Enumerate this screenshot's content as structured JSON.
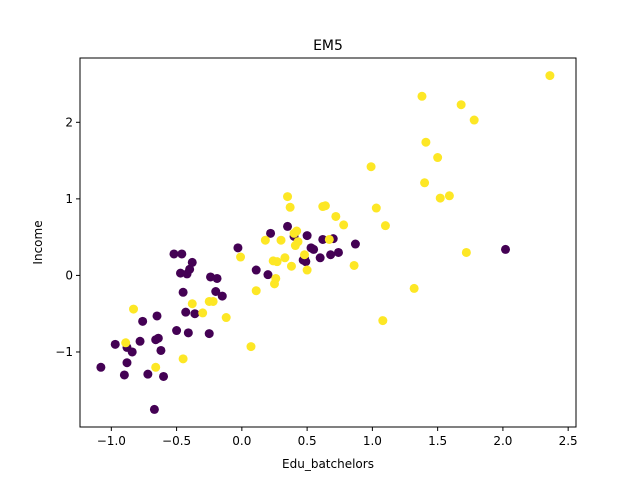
{
  "chart_data": {
    "type": "scatter",
    "title": "EM5",
    "xlabel": "Edu_batchelors",
    "ylabel": "Income",
    "xlim": [
      -1.24,
      2.56
    ],
    "ylim": [
      -1.98,
      2.84
    ],
    "xticks": [
      -1.0,
      -0.5,
      0.0,
      0.5,
      1.0,
      1.5,
      2.0,
      2.5
    ],
    "xtick_labels": [
      "−1.0",
      "−0.5",
      "0.0",
      "0.5",
      "1.0",
      "1.5",
      "2.0",
      "2.5"
    ],
    "yticks": [
      -1,
      0,
      1,
      2
    ],
    "ytick_labels": [
      "−1",
      "0",
      "1",
      "2"
    ],
    "grid": false,
    "legend": "none",
    "colors": {
      "cluster_0": "#440154",
      "cluster_1": "#fde725"
    },
    "series": [
      {
        "color_key": "cluster_0",
        "x": [
          -1.08,
          -0.97,
          -0.9,
          -0.88,
          -0.84,
          -0.88,
          -0.76,
          -0.78,
          -0.72,
          -0.65,
          -0.66,
          -0.64,
          -0.6,
          -0.62,
          -0.52,
          -0.5,
          -0.47,
          -0.46,
          -0.45,
          -0.43,
          -0.42,
          -0.4,
          -0.41,
          -0.38,
          -0.36,
          -0.25,
          -0.24,
          -0.2,
          -0.19,
          -0.15,
          -0.03,
          0.11,
          0.2,
          0.22,
          0.35,
          0.4,
          0.47,
          0.48,
          0.49,
          0.5,
          0.53,
          0.55,
          0.6,
          0.62,
          0.68,
          0.7,
          0.74,
          0.87,
          2.02,
          -0.67
        ],
        "y": [
          -1.2,
          -0.9,
          -1.3,
          -0.94,
          -1.0,
          -1.14,
          -0.6,
          -0.86,
          -1.29,
          -0.53,
          -0.84,
          -0.82,
          -1.32,
          -0.98,
          0.28,
          -0.72,
          0.03,
          0.28,
          -0.22,
          -0.48,
          0.02,
          0.08,
          -0.75,
          0.17,
          -0.5,
          -0.76,
          -0.02,
          -0.21,
          -0.04,
          -0.27,
          0.36,
          0.07,
          0.01,
          0.55,
          0.64,
          0.51,
          0.2,
          0.22,
          0.18,
          0.52,
          0.36,
          0.34,
          0.23,
          0.47,
          0.27,
          0.48,
          0.3,
          0.41,
          0.34,
          -1.75
        ]
      },
      {
        "color_key": "cluster_1",
        "x": [
          -0.83,
          -0.89,
          -0.66,
          -0.45,
          -0.38,
          -0.3,
          -0.25,
          -0.22,
          -0.12,
          -0.01,
          0.07,
          0.11,
          0.18,
          0.24,
          0.25,
          0.26,
          0.27,
          0.3,
          0.33,
          0.35,
          0.37,
          0.38,
          0.4,
          0.41,
          0.42,
          0.43,
          0.48,
          0.5,
          0.62,
          0.64,
          0.67,
          0.72,
          0.78,
          0.86,
          0.99,
          1.03,
          1.08,
          1.1,
          1.32,
          1.38,
          1.4,
          1.41,
          1.5,
          1.52,
          1.59,
          1.68,
          1.72,
          1.78,
          2.36
        ],
        "y": [
          -0.44,
          -0.88,
          -1.2,
          -1.09,
          -0.37,
          -0.49,
          -0.34,
          -0.34,
          -0.55,
          0.24,
          -0.93,
          -0.2,
          0.46,
          0.19,
          -0.11,
          -0.04,
          0.18,
          0.46,
          0.23,
          1.03,
          0.89,
          0.12,
          0.55,
          0.39,
          0.58,
          0.44,
          0.27,
          0.07,
          0.9,
          0.91,
          0.47,
          0.77,
          0.66,
          0.13,
          1.42,
          0.88,
          -0.59,
          0.65,
          -0.17,
          2.34,
          1.21,
          1.74,
          1.54,
          1.01,
          1.04,
          2.23,
          0.3,
          2.03,
          2.61
        ]
      }
    ]
  }
}
